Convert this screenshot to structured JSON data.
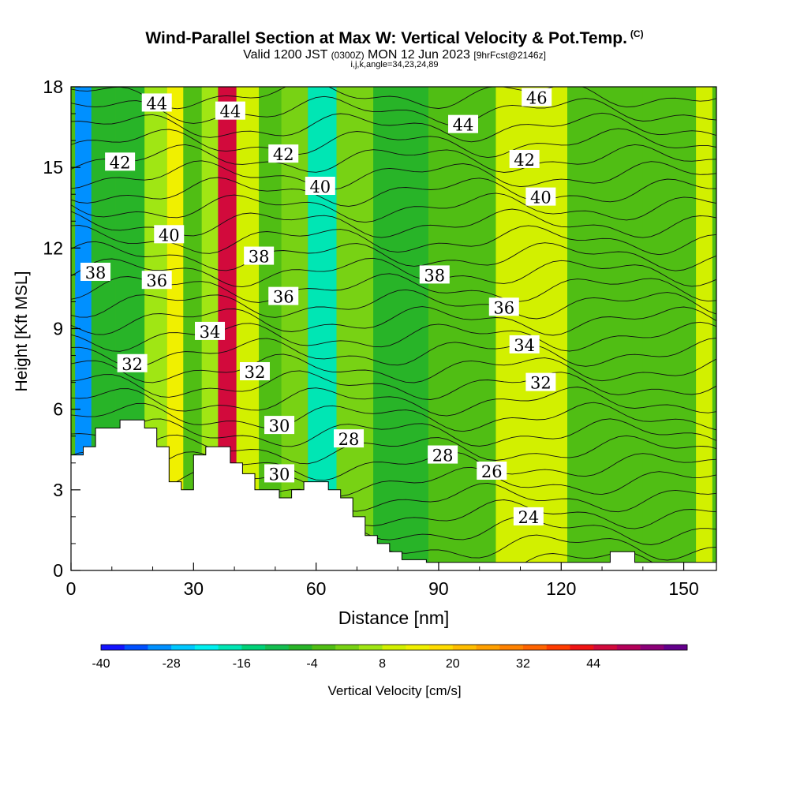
{
  "header": {
    "title": "Wind-Parallel Section at Max W: Vertical Velocity & Pot.Temp.",
    "title_mark": "(C)",
    "valid_prefix": "Valid 1200 JST",
    "valid_utc": "(0300Z)",
    "valid_date": "MON 12 Jun 2023",
    "forecast": "[9hrFcst@2146z]",
    "indices": "i,j,k,angle=34,23,24,89"
  },
  "chart_data": {
    "type": "heatmap",
    "xlabel": "Distance [nm]",
    "ylabel": "Height [Kft MSL]",
    "xlim": [
      0,
      158
    ],
    "ylim": [
      0,
      18
    ],
    "x_ticks": [
      0,
      30,
      60,
      90,
      120,
      150
    ],
    "y_ticks": [
      0,
      3,
      6,
      9,
      12,
      15,
      18
    ],
    "field": "Vertical Velocity [cm/s]",
    "vertical_velocity_columns": [
      {
        "x": 2,
        "w": -30
      },
      {
        "x": 8,
        "w": -8
      },
      {
        "x": 14,
        "w": -6
      },
      {
        "x": 22,
        "w": 6
      },
      {
        "x": 25,
        "w": 14
      },
      {
        "x": 30,
        "w": -4
      },
      {
        "x": 34,
        "w": 4
      },
      {
        "x": 38,
        "w": 44
      },
      {
        "x": 43,
        "w": 8
      },
      {
        "x": 49,
        "w": -4
      },
      {
        "x": 54,
        "w": 2
      },
      {
        "x": 62,
        "w": -20
      },
      {
        "x": 68,
        "w": 2
      },
      {
        "x": 80,
        "w": -8
      },
      {
        "x": 95,
        "w": -4
      },
      {
        "x": 113,
        "w": 10
      },
      {
        "x": 130,
        "w": -4
      },
      {
        "x": 150,
        "w": -2
      },
      {
        "x": 156,
        "w": 8
      }
    ],
    "theta_contours": [
      {
        "label": "24",
        "x": 112,
        "y": 2.0
      },
      {
        "label": "26",
        "x": 103,
        "y": 3.7
      },
      {
        "label": "28",
        "x": 68,
        "y": 4.9
      },
      {
        "label": "28",
        "x": 91,
        "y": 4.3
      },
      {
        "label": "30",
        "x": 51,
        "y": 5.4
      },
      {
        "label": "30",
        "x": 51,
        "y": 3.6
      },
      {
        "label": "32",
        "x": 15,
        "y": 7.7
      },
      {
        "label": "32",
        "x": 45,
        "y": 7.4
      },
      {
        "label": "32",
        "x": 115,
        "y": 7.0
      },
      {
        "label": "34",
        "x": 34,
        "y": 8.9
      },
      {
        "label": "34",
        "x": 111,
        "y": 8.4
      },
      {
        "label": "36",
        "x": 21,
        "y": 10.8
      },
      {
        "label": "36",
        "x": 52,
        "y": 10.2
      },
      {
        "label": "36",
        "x": 106,
        "y": 9.8
      },
      {
        "label": "38",
        "x": 6,
        "y": 11.1
      },
      {
        "label": "38",
        "x": 46,
        "y": 11.7
      },
      {
        "label": "38",
        "x": 89,
        "y": 11.0
      },
      {
        "label": "40",
        "x": 24,
        "y": 12.5
      },
      {
        "label": "40",
        "x": 61,
        "y": 14.3
      },
      {
        "label": "40",
        "x": 115,
        "y": 13.9
      },
      {
        "label": "42",
        "x": 12,
        "y": 15.2
      },
      {
        "label": "42",
        "x": 52,
        "y": 15.5
      },
      {
        "label": "42",
        "x": 111,
        "y": 15.3
      },
      {
        "label": "44",
        "x": 21,
        "y": 17.4
      },
      {
        "label": "44",
        "x": 39,
        "y": 17.1
      },
      {
        "label": "44",
        "x": 96,
        "y": 16.6
      },
      {
        "label": "46",
        "x": 114,
        "y": 17.6
      }
    ],
    "terrain": [
      [
        0,
        4.3
      ],
      [
        3,
        4.3
      ],
      [
        3,
        4.6
      ],
      [
        6,
        4.6
      ],
      [
        6,
        5.3
      ],
      [
        12,
        5.3
      ],
      [
        12,
        5.6
      ],
      [
        18,
        5.6
      ],
      [
        18,
        5.3
      ],
      [
        21,
        5.3
      ],
      [
        21,
        4.6
      ],
      [
        24,
        4.6
      ],
      [
        24,
        3.3
      ],
      [
        27,
        3.3
      ],
      [
        27,
        3.0
      ],
      [
        30,
        3.0
      ],
      [
        30,
        4.3
      ],
      [
        33,
        4.3
      ],
      [
        33,
        4.6
      ],
      [
        39,
        4.6
      ],
      [
        39,
        4.0
      ],
      [
        42,
        4.0
      ],
      [
        42,
        3.6
      ],
      [
        45,
        3.6
      ],
      [
        45,
        3.0
      ],
      [
        51,
        3.0
      ],
      [
        51,
        2.7
      ],
      [
        54,
        2.7
      ],
      [
        54,
        3.0
      ],
      [
        57,
        3.0
      ],
      [
        57,
        3.3
      ],
      [
        63,
        3.3
      ],
      [
        63,
        3.0
      ],
      [
        66,
        3.0
      ],
      [
        66,
        2.7
      ],
      [
        69,
        2.7
      ],
      [
        69,
        2.0
      ],
      [
        72,
        2.0
      ],
      [
        72,
        1.3
      ],
      [
        75,
        1.3
      ],
      [
        75,
        1.0
      ],
      [
        78,
        1.0
      ],
      [
        78,
        0.7
      ],
      [
        81,
        0.7
      ],
      [
        81,
        0.4
      ],
      [
        87,
        0.4
      ],
      [
        87,
        0.3
      ],
      [
        132,
        0.3
      ],
      [
        132,
        0.7
      ],
      [
        138,
        0.7
      ],
      [
        138,
        0.3
      ],
      [
        158,
        0.3
      ]
    ]
  },
  "colorbar": {
    "label": "Vertical Velocity [cm/s]",
    "tick_labels": [
      "-40",
      "-28",
      "-16",
      "-4",
      "8",
      "20",
      "32",
      "44"
    ],
    "colors": [
      "#1414ff",
      "#0050ff",
      "#0090ff",
      "#00c8ff",
      "#00f0f0",
      "#00e6b4",
      "#00d278",
      "#14be50",
      "#28b428",
      "#50be14",
      "#78d214",
      "#a0e614",
      "#d2f000",
      "#f0f000",
      "#ffdc00",
      "#ffbe00",
      "#ffa000",
      "#ff8200",
      "#ff6400",
      "#ff3c00",
      "#f01414",
      "#d20a3c",
      "#b4005a",
      "#8c0078",
      "#64008c"
    ]
  }
}
